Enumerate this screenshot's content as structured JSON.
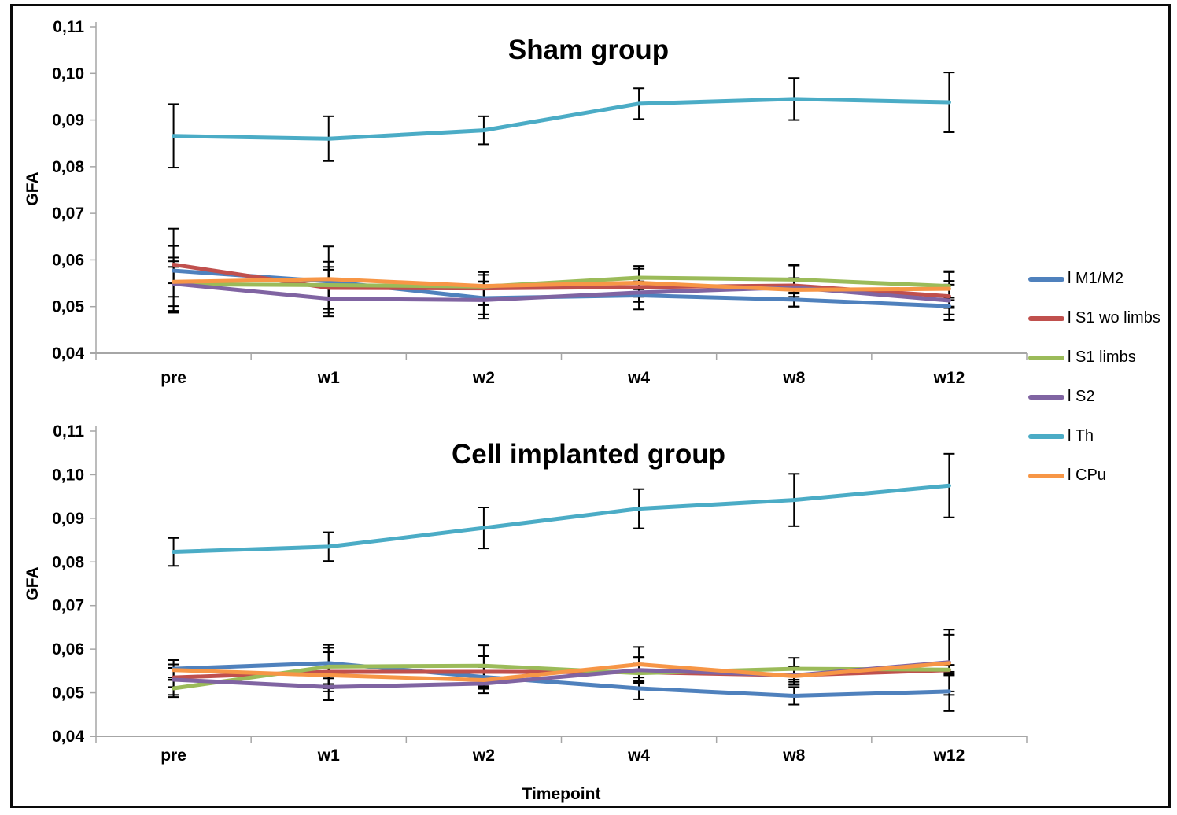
{
  "figure": {
    "xlabel": "Timepoint",
    "ylabel": "GFA",
    "background_color": "#ffffff",
    "border_color": "#0a0a0a",
    "axis_color": "#a6a6a6",
    "error_bar_color": "#000000"
  },
  "legend": {
    "position": "right",
    "items": [
      {
        "label": "l M1/M2",
        "color": "#4F81BD"
      },
      {
        "label": "l S1 wo limbs",
        "color": "#C0504D"
      },
      {
        "label": "l S1 limbs",
        "color": "#9BBB59"
      },
      {
        "label": "l S2",
        "color": "#8064A2"
      },
      {
        "label": "l Th",
        "color": "#4BACC6"
      },
      {
        "label": "l CPu",
        "color": "#F79646"
      }
    ]
  },
  "chart_data": [
    {
      "type": "line",
      "title": "Sham group",
      "ylabel": "GFA",
      "xlabel": "Timepoint",
      "categories": [
        "pre",
        "w1",
        "w2",
        "w4",
        "w8",
        "w12"
      ],
      "ylim": [
        0.04,
        0.11
      ],
      "ytick_step": 0.01,
      "ytick_labels": [
        "0,11",
        "0,10",
        "0,09",
        "0,08",
        "0,07",
        "0,06",
        "0,05",
        "0,04"
      ],
      "grid": false,
      "error_bars": true,
      "series": [
        {
          "name": "l M1/M2",
          "color": "#4F81BD",
          "values": [
            0.0577,
            0.0554,
            0.0518,
            0.0524,
            0.0515,
            0.0501
          ],
          "errors": [
            0.009,
            0.0075,
            0.0035,
            0.003,
            0.0015,
            0.0018
          ]
        },
        {
          "name": "l S1 wo limbs",
          "color": "#C0504D",
          "values": [
            0.059,
            0.054,
            0.0539,
            0.0542,
            0.0545,
            0.0522
          ],
          "errors": [
            0.004,
            0.0045,
            0.0036,
            0.002,
            0.0045,
            0.0025
          ]
        },
        {
          "name": "l S1 limbs",
          "color": "#9BBB59",
          "values": [
            0.0548,
            0.0546,
            0.0543,
            0.0562,
            0.0558,
            0.0544
          ],
          "errors": [
            0.0057,
            0.005,
            0.0025,
            0.0025,
            0.003,
            0.003
          ]
        },
        {
          "name": "l S2",
          "color": "#8064A2",
          "values": [
            0.0549,
            0.0517,
            0.0514,
            0.053,
            0.0541,
            0.0513
          ],
          "errors": [
            0.0048,
            0.003,
            0.004,
            0.002,
            0.002,
            0.0042
          ]
        },
        {
          "name": "l Th",
          "color": "#4BACC6",
          "values": [
            0.0866,
            0.086,
            0.0878,
            0.0935,
            0.0945,
            0.0938
          ],
          "errors": [
            0.0068,
            0.0048,
            0.003,
            0.0033,
            0.0045,
            0.0064
          ]
        },
        {
          "name": "l CPu",
          "color": "#F79646",
          "values": [
            0.0553,
            0.0559,
            0.0544,
            0.0551,
            0.0536,
            0.0538
          ],
          "errors": [
            0.0032,
            0.002,
            0.003,
            0.003,
            0.002,
            0.0038
          ]
        }
      ]
    },
    {
      "type": "line",
      "title": "Cell implanted group",
      "ylabel": "GFA",
      "xlabel": "Timepoint",
      "categories": [
        "pre",
        "w1",
        "w2",
        "w4",
        "w8",
        "w12"
      ],
      "ylim": [
        0.04,
        0.11
      ],
      "ytick_step": 0.01,
      "ytick_labels": [
        "0,11",
        "0,10",
        "0,09",
        "0,08",
        "0,07",
        "0,06",
        "0,05",
        "0,04"
      ],
      "grid": false,
      "error_bars": true,
      "series": [
        {
          "name": "l M1/M2",
          "color": "#4F81BD",
          "values": [
            0.0555,
            0.0568,
            0.0536,
            0.051,
            0.0493,
            0.0503
          ],
          "errors": [
            0.002,
            0.0035,
            0.001,
            0.0025,
            0.002,
            0.0045
          ]
        },
        {
          "name": "l S1 wo limbs",
          "color": "#C0504D",
          "values": [
            0.0535,
            0.0548,
            0.0548,
            0.0547,
            0.054,
            0.0552
          ],
          "errors": [
            0.0022,
            0.0045,
            0.0036,
            0.002,
            0.0015,
            0.0012
          ]
        },
        {
          "name": "l S1 limbs",
          "color": "#9BBB59",
          "values": [
            0.051,
            0.056,
            0.0562,
            0.0545,
            0.0555,
            0.0553
          ],
          "errors": [
            0.002,
            0.005,
            0.0047,
            0.0035,
            0.0025,
            0.001
          ]
        },
        {
          "name": "l S2",
          "color": "#8064A2",
          "values": [
            0.053,
            0.0513,
            0.0521,
            0.0552,
            0.054,
            0.057
          ],
          "errors": [
            0.0035,
            0.003,
            0.0012,
            0.003,
            0.002,
            0.0075
          ]
        },
        {
          "name": "l Th",
          "color": "#4BACC6",
          "values": [
            0.0823,
            0.0835,
            0.0878,
            0.0922,
            0.0942,
            0.0975
          ],
          "errors": [
            0.0032,
            0.0033,
            0.0047,
            0.0045,
            0.006,
            0.0073
          ]
        },
        {
          "name": "l CPu",
          "color": "#F79646",
          "values": [
            0.0552,
            0.054,
            0.0529,
            0.0565,
            0.0538,
            0.0568
          ],
          "errors": [
            0.0023,
            0.002,
            0.003,
            0.004,
            0.002,
            0.0065
          ]
        }
      ]
    }
  ]
}
